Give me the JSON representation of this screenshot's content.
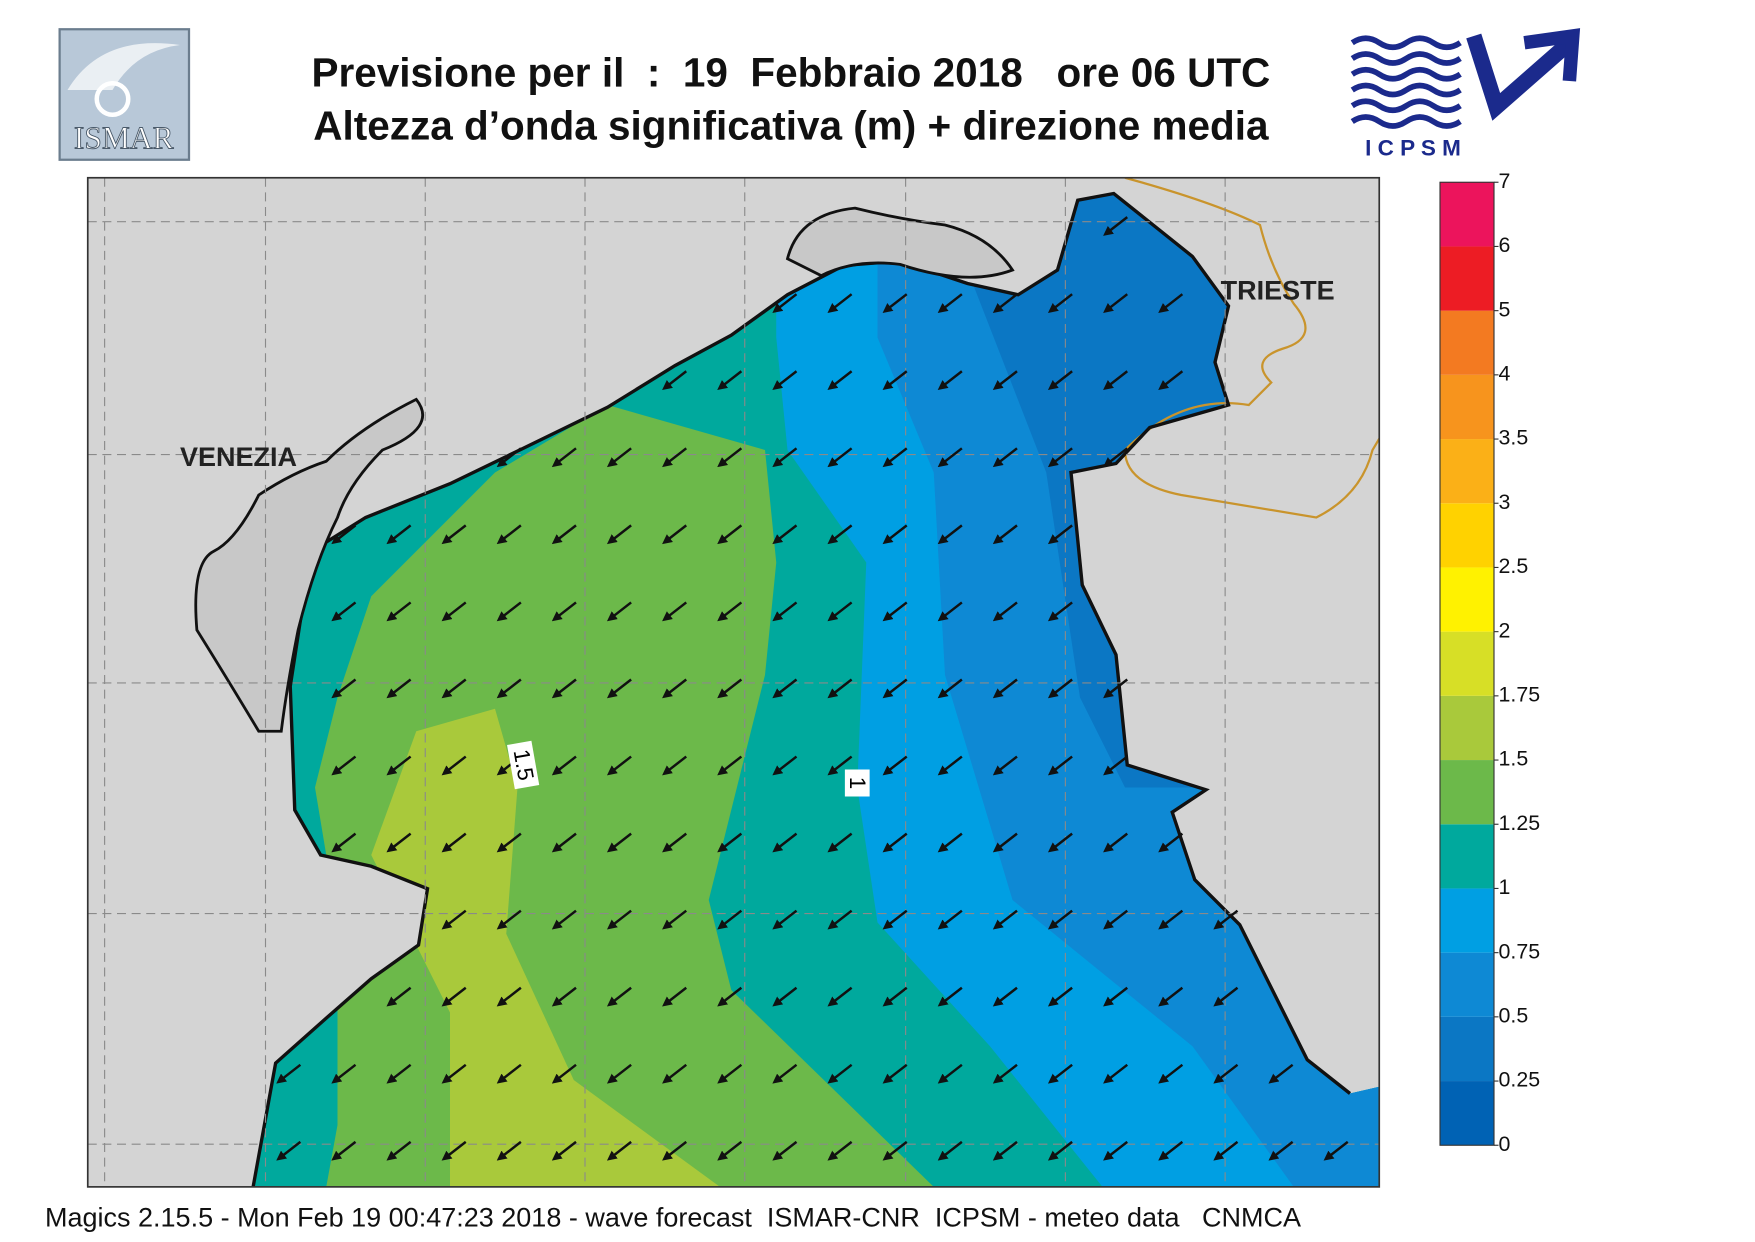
{
  "header": {
    "title_line1": "Previsione per il  :  19  Febbraio 2018   ore 06 UTC",
    "title_line2": "Altezza d’onda significativa (m) + direzione media"
  },
  "logos": {
    "left": "ISMAR",
    "right": "I C P S M"
  },
  "map": {
    "places": [
      "VENEZIA",
      "TRIESTE"
    ],
    "contour_labels": [
      "1.5",
      "1"
    ]
  },
  "colorbar": {
    "ticks": [
      0,
      0.25,
      0.5,
      0.75,
      1,
      1.25,
      1.5,
      1.75,
      2,
      2.5,
      3,
      3.5,
      4,
      5,
      6,
      7
    ],
    "colors": [
      "#0062b4",
      "#0b77c4",
      "#0e89d4",
      "#009fe3",
      "#00a99d",
      "#6cb94a",
      "#a9c93b",
      "#d7df26",
      "#fff200",
      "#ffd200",
      "#fbb017",
      "#f7941d",
      "#f37a21",
      "#ed1c24",
      "#ec145c"
    ]
  },
  "footer": "Magics 2.15.5 - Mon Feb 19 00:47:23 2018 - wave forecast  ISMAR-CNR  ICPSM - meteo data   CNMCA"
}
